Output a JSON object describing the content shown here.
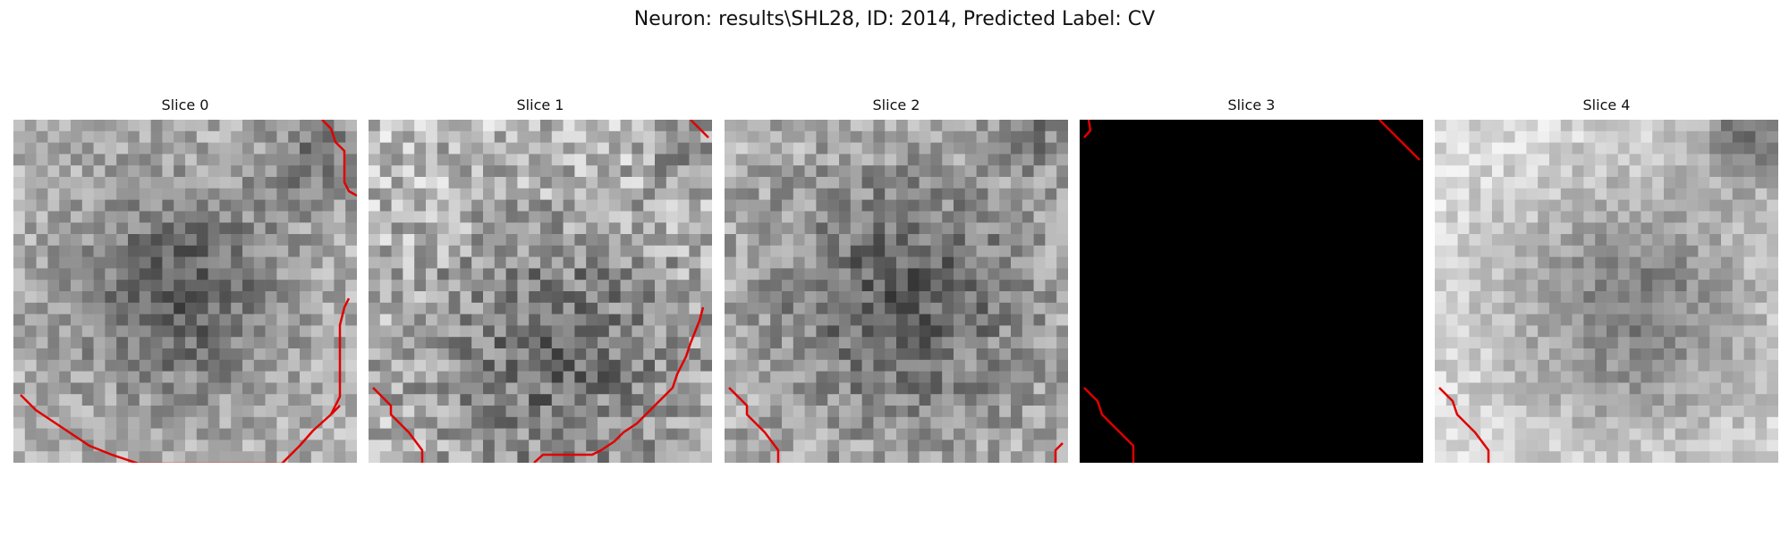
{
  "figure": {
    "title": "Neuron: results\\SHL28, ID: 2014, Predicted Label: CV"
  },
  "colors": {
    "background": "#ffffff",
    "contour": "#e00000",
    "empty_slice": "#000000"
  },
  "slices": [
    {
      "title": "Slice 0",
      "image": "grayscale noisy patch with a darker blob near the center",
      "contour": "red outline along left-bottom and right edges"
    },
    {
      "title": "Slice 1",
      "image": "grayscale noisy patch with darker region in lower middle",
      "contour": "red segments at top-right, bottom-left and lower-right"
    },
    {
      "title": "Slice 2",
      "image": "grayscale noisy patch with darker center",
      "contour": "red segments at bottom-left and bottom-right"
    },
    {
      "title": "Slice 3",
      "image": "solid black patch",
      "contour": "red segments at top-left, top-right and bottom-left"
    },
    {
      "title": "Slice 4",
      "image": "light grayscale patch with darker region at center-right",
      "contour": "red segment at bottom-left"
    }
  ]
}
